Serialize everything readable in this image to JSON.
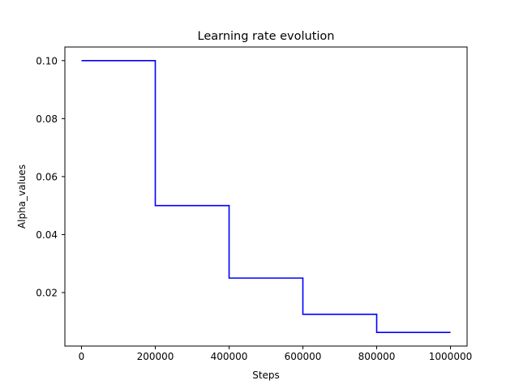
{
  "chart_data": {
    "type": "line",
    "title": "Learning rate evolution",
    "xlabel": "Steps",
    "ylabel": "Alpha_values",
    "xlim": [
      -45000,
      1045000
    ],
    "ylim": [
      0.00156,
      0.10469
    ],
    "xticks": [
      0,
      200000,
      400000,
      600000,
      800000,
      1000000
    ],
    "xtick_labels": [
      "0",
      "200000",
      "400000",
      "600000",
      "800000",
      "1000000"
    ],
    "yticks": [
      0.02,
      0.04,
      0.06,
      0.08,
      0.1
    ],
    "ytick_labels": [
      "0.02",
      "0.04",
      "0.06",
      "0.08",
      "0.10"
    ],
    "grid": false,
    "series": [
      {
        "color": "#0000ff",
        "step": "post",
        "x": [
          0,
          200000,
          400000,
          600000,
          800000,
          1000000
        ],
        "y": [
          0.1,
          0.05,
          0.025,
          0.0125,
          0.00625,
          0.00625
        ]
      }
    ]
  }
}
